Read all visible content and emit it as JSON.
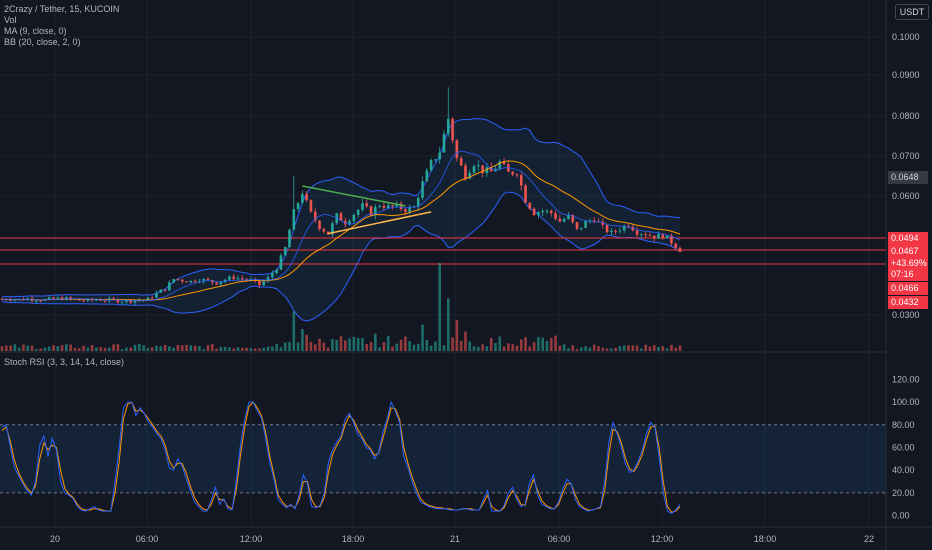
{
  "header": {
    "symbol_line": "2Crazy / Tether, 15, KUCOIN",
    "vol_label": "Vol",
    "ma_label": "MA (9, close, 0)",
    "bb_label": "BB (20, close, 2, 0)",
    "currency": "USDT"
  },
  "rsi_header": {
    "label": "Stoch RSI (3, 3, 14, 14, close)"
  },
  "price_tags": {
    "current_price_marker": "0.0648",
    "line_top": "0.0494",
    "last_price": "0.0467",
    "change_pct": "+43.69%",
    "countdown": "07:16",
    "line_mid": "0.0466",
    "line_low": "0.0432"
  },
  "colors": {
    "background": "#131722",
    "up": "#26a69a",
    "down": "#ef5350",
    "bb_band": "#2962ff",
    "ma_line": "#ff9800",
    "trend_top": "#4caf50",
    "trend_bottom": "#ffb74d",
    "stoch_k": "#2962ff",
    "stoch_d": "#ff9800",
    "hline": "#f23645"
  },
  "chart_data": [
    {
      "type": "candlestick",
      "title": "2Crazy / Tether, 15, KUCOIN",
      "y_axis_ticks": [
        "0.1000",
        "0.0900",
        "0.0800",
        "0.0700",
        "0.0600",
        "0.0300"
      ],
      "x_axis_ticks": [
        "20",
        "06:00",
        "12:00",
        "18:00",
        "21",
        "06:00",
        "12:00",
        "18:00",
        "22"
      ],
      "horizontal_lines": [
        0.0494,
        0.0466,
        0.0432
      ],
      "price_path": [
        {
          "t": 0,
          "p": 0.0341
        },
        {
          "t": 2,
          "p": 0.0343
        },
        {
          "t": 4,
          "p": 0.034
        },
        {
          "t": 6,
          "p": 0.0342
        },
        {
          "t": 8,
          "p": 0.0341
        },
        {
          "t": 10,
          "p": 0.0339
        },
        {
          "t": 12,
          "p": 0.0342
        },
        {
          "t": 14,
          "p": 0.0343
        },
        {
          "t": 16,
          "p": 0.0341
        },
        {
          "t": 18,
          "p": 0.0338
        },
        {
          "t": 20,
          "p": 0.0337
        },
        {
          "t": 22,
          "p": 0.034
        },
        {
          "t": 24,
          "p": 0.0339
        },
        {
          "t": 26,
          "p": 0.0338
        },
        {
          "t": 28,
          "p": 0.0336
        },
        {
          "t": 30,
          "p": 0.0337
        },
        {
          "t": 32,
          "p": 0.0339
        },
        {
          "t": 34,
          "p": 0.0341
        },
        {
          "t": 36,
          "p": 0.0356
        },
        {
          "t": 38,
          "p": 0.0368
        },
        {
          "t": 40,
          "p": 0.0393
        },
        {
          "t": 42,
          "p": 0.039
        },
        {
          "t": 44,
          "p": 0.0387
        },
        {
          "t": 46,
          "p": 0.0393
        },
        {
          "t": 48,
          "p": 0.0388
        },
        {
          "t": 50,
          "p": 0.0384
        },
        {
          "t": 52,
          "p": 0.0392
        },
        {
          "t": 54,
          "p": 0.0398
        },
        {
          "t": 56,
          "p": 0.0393
        },
        {
          "t": 58,
          "p": 0.0389
        },
        {
          "t": 60,
          "p": 0.0378
        },
        {
          "t": 62,
          "p": 0.0395
        },
        {
          "t": 64,
          "p": 0.0423
        },
        {
          "t": 66,
          "p": 0.047
        },
        {
          "t": 68,
          "p": 0.0559
        },
        {
          "t": 70,
          "p": 0.061
        },
        {
          "t": 72,
          "p": 0.0555
        },
        {
          "t": 74,
          "p": 0.0523
        },
        {
          "t": 76,
          "p": 0.0505
        },
        {
          "t": 78,
          "p": 0.055
        },
        {
          "t": 80,
          "p": 0.0534
        },
        {
          "t": 82,
          "p": 0.0555
        },
        {
          "t": 84,
          "p": 0.0575
        },
        {
          "t": 86,
          "p": 0.0558
        },
        {
          "t": 88,
          "p": 0.0579
        },
        {
          "t": 90,
          "p": 0.0572
        },
        {
          "t": 92,
          "p": 0.0573
        },
        {
          "t": 94,
          "p": 0.0566
        },
        {
          "t": 96,
          "p": 0.0571
        },
        {
          "t": 98,
          "p": 0.0632
        },
        {
          "t": 100,
          "p": 0.0682
        },
        {
          "t": 102,
          "p": 0.0712
        },
        {
          "t": 104,
          "p": 0.0794
        },
        {
          "t": 106,
          "p": 0.0693
        },
        {
          "t": 108,
          "p": 0.0653
        },
        {
          "t": 110,
          "p": 0.0683
        },
        {
          "t": 112,
          "p": 0.0664
        },
        {
          "t": 114,
          "p": 0.066
        },
        {
          "t": 116,
          "p": 0.0684
        },
        {
          "t": 118,
          "p": 0.0657
        },
        {
          "t": 120,
          "p": 0.0661
        },
        {
          "t": 122,
          "p": 0.059
        },
        {
          "t": 124,
          "p": 0.0558
        },
        {
          "t": 126,
          "p": 0.0563
        },
        {
          "t": 128,
          "p": 0.0557
        },
        {
          "t": 130,
          "p": 0.0536
        },
        {
          "t": 132,
          "p": 0.0548
        },
        {
          "t": 134,
          "p": 0.0513
        },
        {
          "t": 136,
          "p": 0.0533
        },
        {
          "t": 138,
          "p": 0.0544
        },
        {
          "t": 140,
          "p": 0.052
        },
        {
          "t": 142,
          "p": 0.0506
        },
        {
          "t": 144,
          "p": 0.0518
        },
        {
          "t": 146,
          "p": 0.0529
        },
        {
          "t": 148,
          "p": 0.051
        },
        {
          "t": 150,
          "p": 0.0505
        },
        {
          "t": 152,
          "p": 0.0498
        },
        {
          "t": 154,
          "p": 0.05
        },
        {
          "t": 156,
          "p": 0.0485
        },
        {
          "t": 158,
          "p": 0.0467
        }
      ],
      "volume_spikes": [
        {
          "t": 68,
          "v": 0.45
        },
        {
          "t": 70,
          "v": 0.25
        },
        {
          "t": 98,
          "v": 0.3
        },
        {
          "t": 102,
          "v": 1.0
        },
        {
          "t": 104,
          "v": 0.6
        },
        {
          "t": 106,
          "v": 0.35
        },
        {
          "t": 108,
          "v": 0.22
        }
      ],
      "trendlines": [
        {
          "from": {
            "t": 70,
            "p": 0.0625
          },
          "to": {
            "t": 94,
            "p": 0.0575
          },
          "color": "trend_top"
        },
        {
          "from": {
            "t": 76,
            "p": 0.0505
          },
          "to": {
            "t": 100,
            "p": 0.056
          },
          "color": "trend_bottom"
        }
      ]
    },
    {
      "type": "line",
      "title": "Stoch RSI (3, 3, 14, 14, close)",
      "y_axis_ticks": [
        "120.00",
        "100.00",
        "80.00",
        "60.00",
        "40.00",
        "20.00",
        "0.00"
      ],
      "ylim": [
        -10,
        130
      ],
      "bands": {
        "upper": 80,
        "lower": 20
      },
      "series": [
        {
          "name": "K",
          "values": [
            78,
            80,
            60,
            42,
            35,
            28,
            22,
            18,
            30,
            62,
            70,
            52,
            68,
            58,
            30,
            20,
            18,
            15,
            8,
            5,
            4,
            6,
            8,
            5,
            4,
            4,
            4,
            30,
            60,
            95,
            100,
            100,
            88,
            95,
            90,
            82,
            78,
            72,
            68,
            58,
            42,
            40,
            50,
            44,
            33,
            22,
            12,
            8,
            4,
            4,
            14,
            25,
            10,
            15,
            6,
            5,
            32,
            63,
            85,
            100,
            100,
            92,
            86,
            68,
            46,
            32,
            14,
            10,
            7,
            10,
            6,
            18,
            36,
            28,
            8,
            7,
            9,
            20,
            47,
            58,
            65,
            70,
            85,
            90,
            82,
            72,
            68,
            60,
            58,
            50,
            56,
            73,
            85,
            100,
            92,
            82,
            52,
            42,
            30,
            20,
            12,
            10,
            8,
            7,
            6,
            6,
            6,
            5,
            5,
            5,
            6,
            6,
            5,
            5,
            5,
            14,
            22,
            4,
            4,
            4,
            9,
            20,
            25,
            14,
            8,
            10,
            28,
            36,
            18,
            10,
            8,
            6,
            6,
            12,
            24,
            32,
            28,
            14,
            8,
            6,
            4,
            5,
            6,
            8,
            30,
            65,
            82,
            72,
            60,
            45,
            38,
            40,
            48,
            58,
            72,
            82,
            78,
            52,
            20,
            4,
            2,
            5,
            10
          ]
        },
        {
          "name": "D",
          "values": [
            75,
            78,
            65,
            48,
            38,
            30,
            24,
            20,
            26,
            50,
            64,
            58,
            62,
            60,
            40,
            24,
            19,
            16,
            10,
            6,
            5,
            5,
            6,
            6,
            5,
            4,
            4,
            20,
            48,
            85,
            98,
            100,
            92,
            93,
            90,
            85,
            80,
            74,
            70,
            62,
            48,
            42,
            46,
            46,
            38,
            26,
            16,
            10,
            6,
            5,
            10,
            20,
            14,
            14,
            8,
            6,
            24,
            54,
            78,
            96,
            100,
            95,
            88,
            73,
            52,
            36,
            18,
            12,
            8,
            9,
            7,
            14,
            30,
            30,
            14,
            8,
            8,
            16,
            38,
            54,
            62,
            68,
            80,
            88,
            84,
            76,
            70,
            63,
            59,
            53,
            55,
            68,
            81,
            95,
            94,
            85,
            60,
            46,
            34,
            24,
            15,
            11,
            9,
            8,
            7,
            7,
            6,
            6,
            5,
            5,
            6,
            6,
            6,
            5,
            5,
            11,
            18,
            8,
            5,
            4,
            7,
            16,
            22,
            17,
            10,
            9,
            22,
            32,
            22,
            13,
            9,
            7,
            6,
            10,
            20,
            28,
            28,
            18,
            10,
            7,
            5,
            5,
            6,
            7,
            22,
            54,
            76,
            74,
            64,
            50,
            41,
            39,
            45,
            54,
            67,
            78,
            79,
            60,
            30,
            8,
            3,
            4,
            8
          ]
        }
      ]
    }
  ]
}
